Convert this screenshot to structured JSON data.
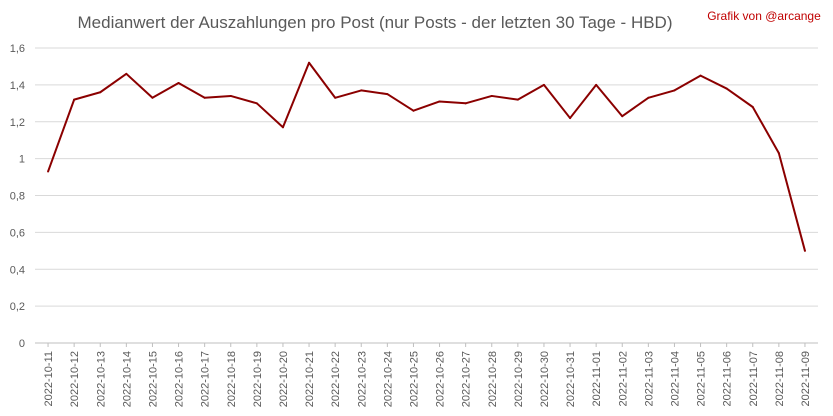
{
  "chart_data": {
    "type": "line",
    "title": "Medianwert der Auszahlungen pro Post (nur Posts - der letzten 30 Tage - HBD)",
    "credit": "Grafik von @arcange",
    "xlabel": "",
    "ylabel": "",
    "ylim": [
      0,
      1.6
    ],
    "yticks": [
      "0",
      "0,2",
      "0,4",
      "0,6",
      "0,8",
      "1",
      "1,2",
      "1,4",
      "1,6"
    ],
    "grid": true,
    "legend": "none",
    "line_color": "#8b0000",
    "categories": [
      "2022-10-11",
      "2022-10-12",
      "2022-10-13",
      "2022-10-14",
      "2022-10-15",
      "2022-10-16",
      "2022-10-17",
      "2022-10-18",
      "2022-10-19",
      "2022-10-20",
      "2022-10-21",
      "2022-10-22",
      "2022-10-23",
      "2022-10-24",
      "2022-10-25",
      "2022-10-26",
      "2022-10-27",
      "2022-10-28",
      "2022-10-29",
      "2022-10-30",
      "2022-10-31",
      "2022-11-01",
      "2022-11-02",
      "2022-11-03",
      "2022-11-04",
      "2022-11-05",
      "2022-11-06",
      "2022-11-07",
      "2022-11-08",
      "2022-11-09"
    ],
    "values": [
      0.93,
      1.32,
      1.36,
      1.46,
      1.33,
      1.41,
      1.33,
      1.34,
      1.3,
      1.17,
      1.52,
      1.33,
      1.37,
      1.35,
      1.26,
      1.31,
      1.3,
      1.34,
      1.32,
      1.4,
      1.22,
      1.4,
      1.23,
      1.33,
      1.37,
      1.45,
      1.38,
      1.28,
      1.03,
      0.5
    ]
  }
}
